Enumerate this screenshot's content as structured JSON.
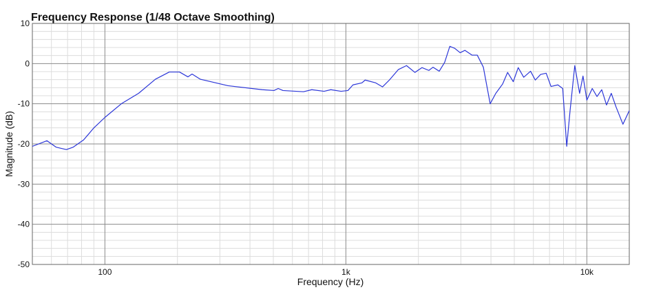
{
  "chart_data": {
    "type": "line",
    "title": "Frequency Response (1/48 Octave Smoothing)",
    "x_label": "Frequency (Hz)",
    "y_label": "Magnitude (dB)",
    "x_scale": "log",
    "color": "#2a35d8",
    "grid": true,
    "xlim": [
      50,
      15000
    ],
    "ylim": [
      -50,
      10
    ],
    "xticks": [
      {
        "value": 100,
        "label": "100"
      },
      {
        "value": 1000,
        "label": "1k"
      },
      {
        "value": 10000,
        "label": "10k"
      }
    ],
    "yticks": [
      -50,
      -40,
      -30,
      -20,
      -10,
      0,
      10
    ],
    "minor_xticks": [
      60,
      70,
      80,
      90,
      200,
      300,
      400,
      500,
      600,
      700,
      800,
      900,
      2000,
      3000,
      4000,
      5000,
      6000,
      7000,
      8000,
      9000
    ],
    "minor_yticks": [
      -48,
      -46,
      -44,
      -42,
      -38,
      -36,
      -34,
      -32,
      -28,
      -26,
      -24,
      -22,
      -18,
      -16,
      -14,
      -12,
      -8,
      -6,
      -4,
      -2,
      2,
      4,
      6,
      8
    ],
    "x": [
      50,
      57.5,
      62.7,
      69.2,
      73.9,
      81.6,
      90,
      100,
      117,
      138,
      162,
      185,
      204,
      221,
      230,
      249,
      324,
      450,
      503,
      524,
      548,
      667,
      722,
      812,
      866,
      955,
      1020,
      1070,
      1166,
      1202,
      1330,
      1419,
      1515,
      1650,
      1785,
      1935,
      2070,
      2210,
      2300,
      2440,
      2570,
      2700,
      2830,
      2980,
      3120,
      3340,
      3510,
      3720,
      3970,
      4190,
      4470,
      4690,
      4950,
      5190,
      5470,
      5840,
      6110,
      6430,
      6780,
      7100,
      7580,
      7940,
      8250,
      8520,
      8910,
      9330,
      9640,
      10000,
      10530,
      11020,
      11530,
      12070,
      12630,
      13220,
      14120,
      15000
    ],
    "values": [
      -20.6,
      -19.2,
      -20.8,
      -21.4,
      -20.8,
      -19.0,
      -16.0,
      -13.4,
      -10,
      -7.4,
      -3.9,
      -2.1,
      -2.1,
      -3.3,
      -2.6,
      -3.9,
      -5.5,
      -6.5,
      -6.7,
      -6.2,
      -6.7,
      -7.0,
      -6.5,
      -6.9,
      -6.5,
      -6.9,
      -6.7,
      -5.3,
      -4.8,
      -4.1,
      -4.8,
      -5.8,
      -4.1,
      -1.5,
      -0.5,
      -2.2,
      -1.0,
      -1.7,
      -0.9,
      -1.9,
      0.3,
      4.3,
      3.8,
      2.7,
      3.3,
      2.1,
      2.1,
      -0.9,
      -10,
      -7.4,
      -5.1,
      -2.2,
      -4.5,
      -1.0,
      -3.4,
      -1.9,
      -4.1,
      -2.7,
      -2.4,
      -5.7,
      -5.3,
      -6.2,
      -20.6,
      -11.7,
      -0.5,
      -7.4,
      -3.1,
      -9.1,
      -6.2,
      -8.2,
      -6.5,
      -10.3,
      -7.4,
      -10.8,
      -15.1,
      -11.7
    ]
  }
}
